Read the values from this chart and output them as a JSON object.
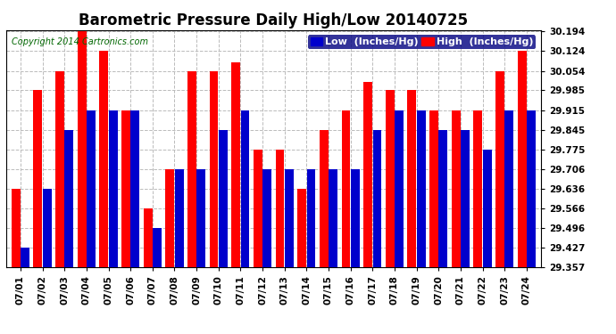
{
  "title": "Barometric Pressure Daily High/Low 20140725",
  "copyright": "Copyright 2014 Cartronics.com",
  "legend_low": "Low  (Inches/Hg)",
  "legend_high": "High  (Inches/Hg)",
  "dates": [
    "07/01",
    "07/02",
    "07/03",
    "07/04",
    "07/05",
    "07/06",
    "07/07",
    "07/08",
    "07/09",
    "07/10",
    "07/11",
    "07/12",
    "07/13",
    "07/14",
    "07/15",
    "07/16",
    "07/17",
    "07/18",
    "07/19",
    "07/20",
    "07/21",
    "07/22",
    "07/23",
    "07/24"
  ],
  "high_values": [
    29.636,
    29.985,
    30.054,
    30.194,
    30.124,
    29.915,
    29.566,
    29.706,
    30.054,
    30.054,
    30.084,
    29.775,
    29.775,
    29.636,
    29.845,
    29.915,
    30.015,
    29.985,
    29.985,
    29.915,
    29.915,
    29.915,
    30.054,
    30.124
  ],
  "low_values": [
    29.427,
    29.636,
    29.845,
    29.915,
    29.915,
    29.915,
    29.496,
    29.706,
    29.706,
    29.845,
    29.915,
    29.706,
    29.706,
    29.706,
    29.706,
    29.706,
    29.845,
    29.915,
    29.915,
    29.845,
    29.845,
    29.775,
    29.915,
    29.915
  ],
  "ylim_min": 29.357,
  "ylim_max": 30.194,
  "yticks": [
    29.357,
    29.427,
    29.496,
    29.566,
    29.636,
    29.706,
    29.775,
    29.845,
    29.915,
    29.985,
    30.054,
    30.124,
    30.194
  ],
  "bar_color_high": "#FF0000",
  "bar_color_low": "#0000CC",
  "background_color": "#FFFFFF",
  "grid_color": "#BBBBBB",
  "title_fontsize": 12,
  "copyright_fontsize": 7,
  "tick_fontsize": 7.5,
  "legend_fontsize": 8,
  "bar_width": 0.4,
  "bar_gap": 0.02
}
